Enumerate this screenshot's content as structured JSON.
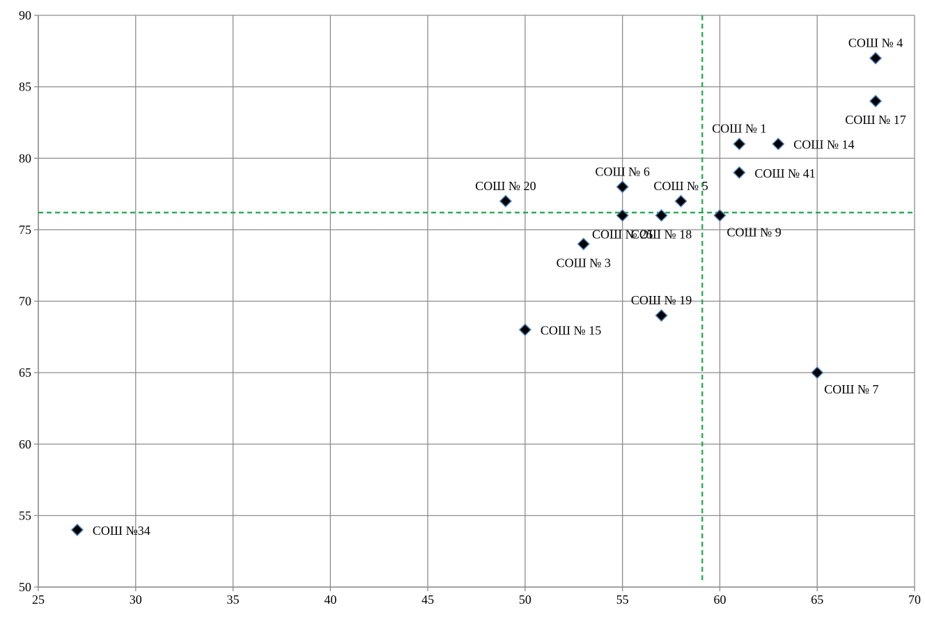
{
  "chart_data": {
    "type": "scatter",
    "title": "",
    "xlabel": "",
    "ylabel": "",
    "xlim": [
      25,
      70
    ],
    "ylim": [
      50,
      90
    ],
    "x_ticks": [
      25,
      30,
      35,
      40,
      45,
      50,
      55,
      60,
      65,
      70
    ],
    "y_ticks": [
      50,
      55,
      60,
      65,
      70,
      75,
      80,
      85,
      90
    ],
    "grid": true,
    "legend": "none",
    "colors": {
      "marker_fill": "#000000",
      "marker_stroke": "#4a7ebb",
      "grid": "#8c8c8c",
      "reference_line": "#1aa64a"
    },
    "reference_lines": {
      "x": 59.1,
      "y": 76.2,
      "style": "dashed"
    },
    "points": [
      {
        "label": "СОШ № 4",
        "x": 68,
        "y": 87,
        "label_pos": "above"
      },
      {
        "label": "СОШ № 17",
        "x": 68,
        "y": 84,
        "label_pos": "below"
      },
      {
        "label": "СОШ № 1",
        "x": 61,
        "y": 81,
        "label_pos": "above"
      },
      {
        "label": "СОШ № 14",
        "x": 63,
        "y": 81,
        "label_pos": "right"
      },
      {
        "label": "СОШ № 41",
        "x": 61,
        "y": 79,
        "label_pos": "right"
      },
      {
        "label": "СОШ № 6",
        "x": 55,
        "y": 78,
        "label_pos": "above"
      },
      {
        "label": "СОШ № 20",
        "x": 49,
        "y": 77,
        "label_pos": "above"
      },
      {
        "label": "СОШ № 5",
        "x": 58,
        "y": 77,
        "label_pos": "above"
      },
      {
        "label": "СОШ № 25",
        "x": 55,
        "y": 76,
        "label_pos": "below"
      },
      {
        "label": "СОШ № 18",
        "x": 57,
        "y": 76,
        "label_pos": "below"
      },
      {
        "label": "СОШ № 9",
        "x": 60,
        "y": 76,
        "label_pos": "below-right"
      },
      {
        "label": "СОШ № 3",
        "x": 53,
        "y": 74,
        "label_pos": "below"
      },
      {
        "label": "СОШ № 19",
        "x": 57,
        "y": 69,
        "label_pos": "above"
      },
      {
        "label": "СОШ № 15",
        "x": 50,
        "y": 68,
        "label_pos": "right"
      },
      {
        "label": "СОШ № 7",
        "x": 65,
        "y": 65,
        "label_pos": "below-right"
      },
      {
        "label": "СОШ №34",
        "x": 27,
        "y": 54,
        "label_pos": "right"
      }
    ]
  }
}
